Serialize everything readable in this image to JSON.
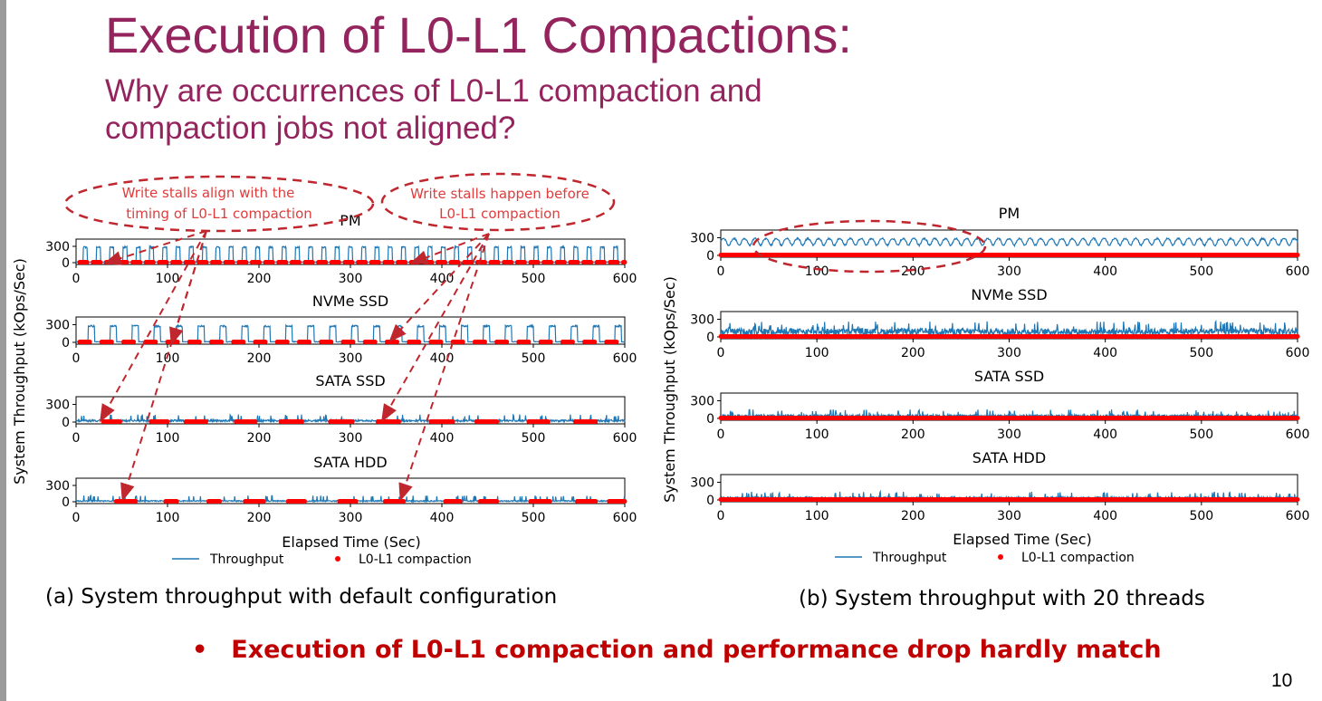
{
  "slide": {
    "title": "Execution of L0-L1 Compactions:",
    "subtitle": "Why are occurrences of L0-L1 compaction and\ncompaction jobs not aligned?",
    "caption_a": "(a) System throughput with default configuration",
    "caption_b": "(b) System throughput with 20 threads",
    "bullet": "Execution of L0-L1 compaction and performance drop hardly match",
    "page_number": "10",
    "colors": {
      "title": "#93245e",
      "throughput": "#1f77b4",
      "compaction": "#ff0000",
      "annotation": "#e03c3c",
      "ellipse": "#c0262d",
      "bullet": "#c00000"
    }
  },
  "annotations": [
    {
      "text_line1": "Write stalls align with the",
      "text_line2": "timing of L0-L1 compaction"
    },
    {
      "text_line1": "Write stalls happen before",
      "text_line2": "L0-L1 compaction"
    }
  ],
  "chart_data": [
    {
      "type": "line",
      "id": "a",
      "ylabel": "System Throughput (kOps/Sec)",
      "xlabel": "Elapsed Time (Sec)",
      "xlim": [
        0,
        600
      ],
      "xticks": [
        0,
        100,
        200,
        300,
        400,
        500,
        600
      ],
      "legend": [
        "Throughput",
        "L0-L1 compaction"
      ],
      "legend_position": "bottom",
      "panels": [
        {
          "title": "PM",
          "ylim": [
            0,
            400
          ],
          "yticks": [
            0,
            300
          ],
          "pattern": "periodic-spikes",
          "spike_period": 14.5,
          "spike_value": 300,
          "base_value": 5,
          "compaction_period": 14.5,
          "compaction_duration": 8
        },
        {
          "title": "NVMe SSD",
          "ylim": [
            0,
            400
          ],
          "yticks": [
            0,
            300
          ],
          "pattern": "periodic-spikes",
          "spike_period": 24,
          "spike_value": 290,
          "base_value": 5,
          "compaction_period": 24,
          "compaction_duration": 11
        },
        {
          "title": "SATA SSD",
          "ylim": [
            0,
            400
          ],
          "yticks": [
            0,
            300
          ],
          "pattern": "noisy-low",
          "mean_value": 30,
          "compaction_segments": [
            [
              30,
              48
            ],
            [
              82,
              100
            ],
            [
              120,
              142
            ],
            [
              175,
              196
            ],
            [
              224,
              247
            ],
            [
              278,
              302
            ],
            [
              330,
              353
            ],
            [
              388,
              412
            ],
            [
              438,
              460
            ],
            [
              495,
              516
            ],
            [
              546,
              568
            ]
          ]
        },
        {
          "title": "SATA HDD",
          "ylim": [
            0,
            400
          ],
          "yticks": [
            0,
            300
          ],
          "pattern": "noisy-low",
          "mean_value": 18,
          "compaction_segments": [
            [
              44,
              65
            ],
            [
              98,
              110
            ],
            [
              145,
              157
            ],
            [
              185,
              205
            ],
            [
              232,
              250
            ],
            [
              288,
              306
            ],
            [
              338,
              358
            ],
            [
              404,
              420
            ],
            [
              442,
              460
            ],
            [
              497,
              518
            ],
            [
              548,
              568
            ],
            [
              583,
              600
            ]
          ]
        }
      ]
    },
    {
      "type": "line",
      "id": "b",
      "ylabel": "System Throughput (kOps/Sec)",
      "xlabel": "Elapsed Time (Sec)",
      "xlim": [
        0,
        600
      ],
      "xticks": [
        0,
        100,
        200,
        300,
        400,
        500,
        600
      ],
      "legend": [
        "Throughput",
        "L0-L1 compaction"
      ],
      "legend_position": "bottom",
      "panels": [
        {
          "title": "PM",
          "ylim": [
            0,
            400
          ],
          "yticks": [
            0,
            300
          ],
          "pattern": "high-oscillating",
          "mean_value": 250,
          "compaction": "continuous"
        },
        {
          "title": "NVMe SSD",
          "ylim": [
            0,
            400
          ],
          "yticks": [
            0,
            300
          ],
          "pattern": "noisy-mid",
          "mean_value": 120,
          "compaction": "continuous"
        },
        {
          "title": "SATA SSD",
          "ylim": [
            0,
            400
          ],
          "yticks": [
            0,
            300
          ],
          "pattern": "noisy-low",
          "mean_value": 50,
          "compaction": "continuous"
        },
        {
          "title": "SATA HDD",
          "ylim": [
            0,
            400
          ],
          "yticks": [
            0,
            300
          ],
          "pattern": "noisy-low",
          "mean_value": 40,
          "compaction": "continuous"
        }
      ]
    }
  ]
}
